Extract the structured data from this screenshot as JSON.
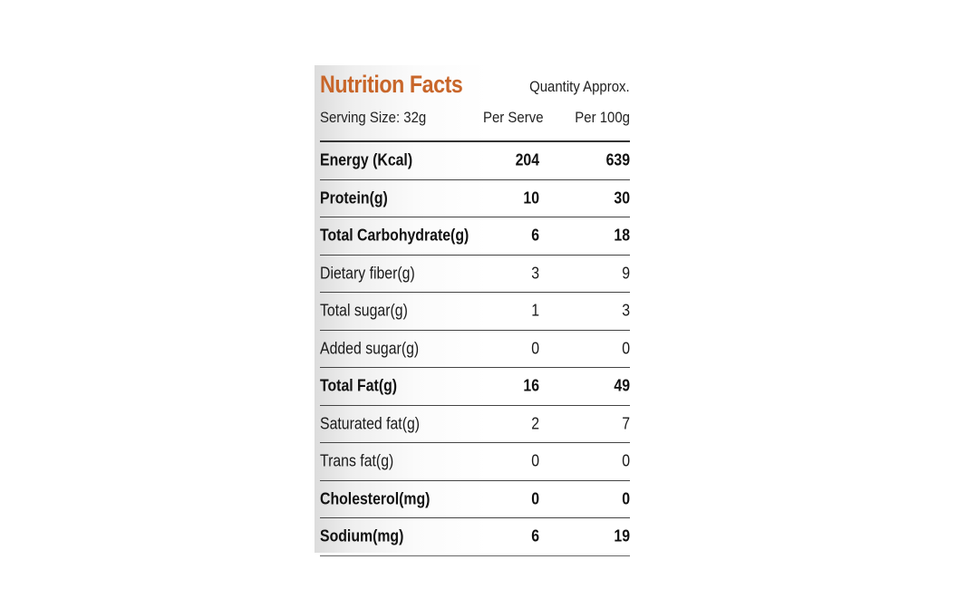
{
  "label": {
    "title": "Nutrition Facts",
    "quantity_note": "Quantity Approx.",
    "serving_size": "Serving Size: 32g",
    "col_serve": "Per Serve",
    "col_100g": "Per 100g",
    "title_color": "#c8662a",
    "rows": [
      {
        "name": "Energy (Kcal)",
        "serve": "204",
        "per100": "639",
        "bold": true
      },
      {
        "name": "Protein(g)",
        "serve": "10",
        "per100": "30",
        "bold": true
      },
      {
        "name": "Total Carbohydrate(g)",
        "serve": "6",
        "per100": "18",
        "bold": true
      },
      {
        "name": "Dietary fiber(g)",
        "serve": "3",
        "per100": "9",
        "bold": false
      },
      {
        "name": "Total sugar(g)",
        "serve": "1",
        "per100": "3",
        "bold": false
      },
      {
        "name": "Added sugar(g)",
        "serve": "0",
        "per100": "0",
        "bold": false
      },
      {
        "name": "Total Fat(g)",
        "serve": "16",
        "per100": "49",
        "bold": true
      },
      {
        "name": "Saturated fat(g)",
        "serve": "2",
        "per100": "7",
        "bold": false
      },
      {
        "name": "Trans fat(g)",
        "serve": "0",
        "per100": "0",
        "bold": false
      },
      {
        "name": "Cholesterol(mg)",
        "serve": "0",
        "per100": "0",
        "bold": true
      },
      {
        "name": "Sodium(mg)",
        "serve": "6",
        "per100": "19",
        "bold": true
      }
    ]
  }
}
